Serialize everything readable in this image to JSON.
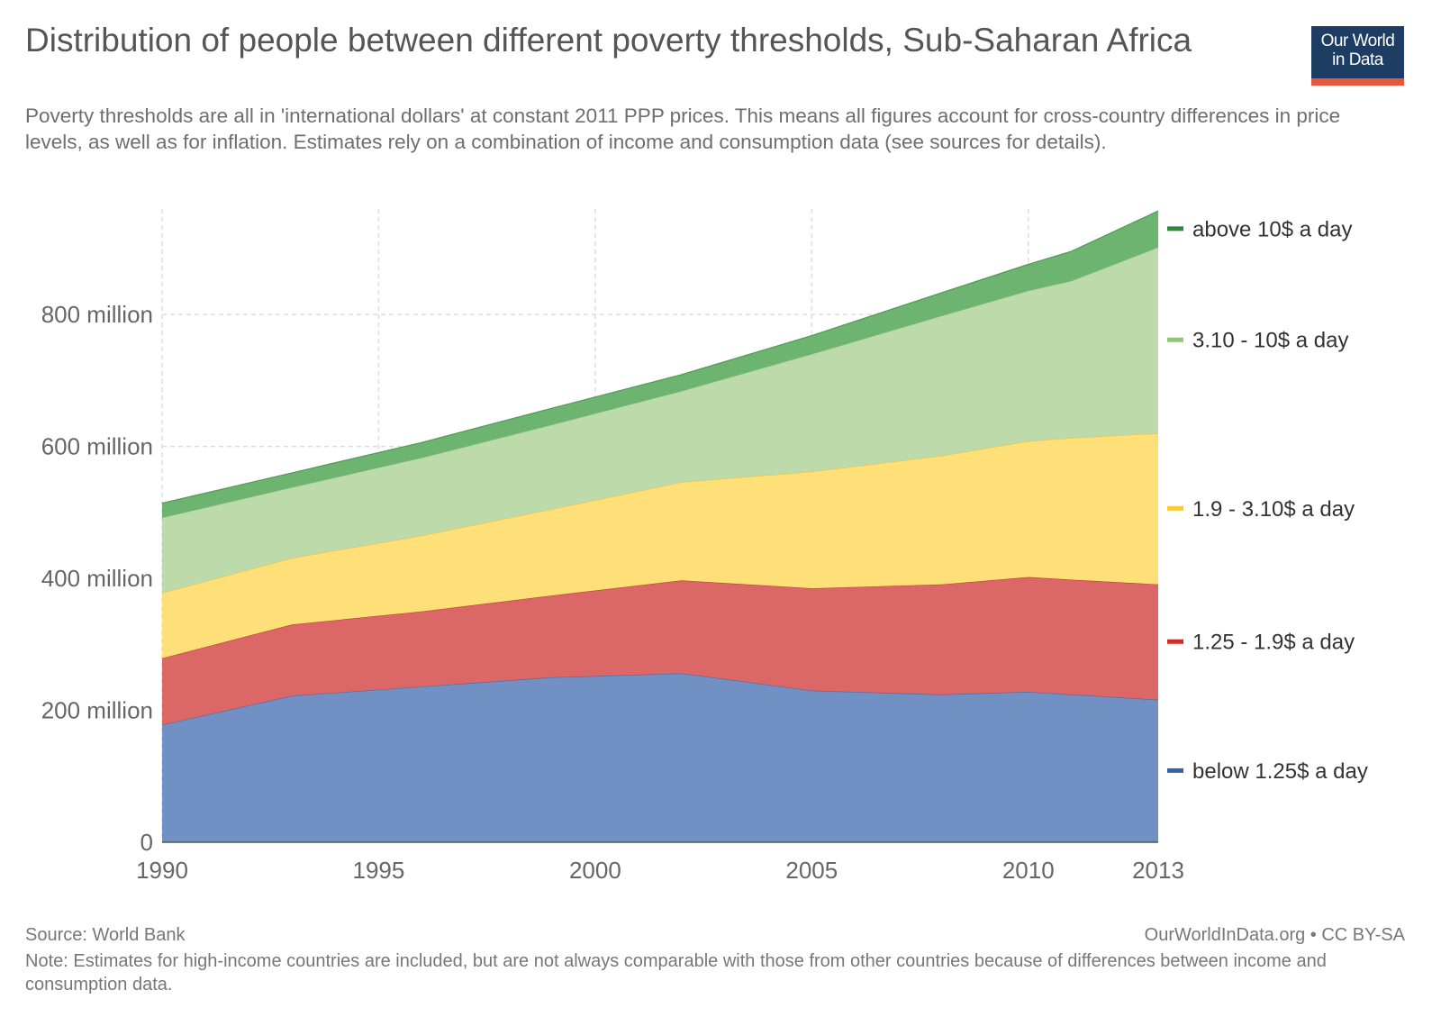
{
  "header": {
    "title": "Distribution of people between different poverty thresholds, Sub-Saharan Africa",
    "subtitle": "Poverty thresholds are all in 'international dollars' at constant 2011 PPP prices. This means all figures account for cross-country differences in price levels, as well as for inflation. Estimates rely on a combination of income and consumption data (see sources for details).",
    "logo_line1": "Our World",
    "logo_line2": "in Data"
  },
  "footer": {
    "source": "Source: World Bank",
    "credit": "OurWorldInData.org • CC BY-SA",
    "note": "Note: Estimates for high-income countries are included, but are not always comparable with those from other countries because of differences between income and consumption data."
  },
  "colors": {
    "brand_navy": "#1d3d63",
    "brand_red": "#e8563b"
  },
  "chart_data": {
    "type": "area",
    "stacked": true,
    "title": "Distribution of people between different poverty thresholds, Sub-Saharan Africa",
    "xlabel": "",
    "ylabel": "",
    "x": [
      1990,
      1993,
      1996,
      1999,
      2002,
      2005,
      2008,
      2010,
      2011,
      2013
    ],
    "xlim": [
      1990,
      2013
    ],
    "ylim": [
      0,
      960
    ],
    "unit": "million",
    "x_ticks": [
      {
        "value": 1990,
        "label": "1990"
      },
      {
        "value": 1995,
        "label": "1995"
      },
      {
        "value": 2000,
        "label": "2000"
      },
      {
        "value": 2005,
        "label": "2005"
      },
      {
        "value": 2010,
        "label": "2010"
      },
      {
        "value": 2013,
        "label": "2013"
      }
    ],
    "y_ticks": [
      {
        "value": 0,
        "label": "0"
      },
      {
        "value": 200,
        "label": "200 million"
      },
      {
        "value": 400,
        "label": "400 million"
      },
      {
        "value": 600,
        "label": "600 million"
      },
      {
        "value": 800,
        "label": "800 million"
      }
    ],
    "grid": true,
    "legend_placement": "right, aligned to stacked areas",
    "series": [
      {
        "name": "below 1.25$ a day",
        "legend_label": "below 1.25$ a day",
        "fill": "#7190c4",
        "line": "#4b6ba7",
        "key": "#3461a8",
        "values": [
          178,
          222,
          236,
          250,
          256,
          230,
          224,
          228,
          224,
          216
        ]
      },
      {
        "name": "1.25 - 1.9$ a day",
        "legend_label": "1.25 - 1.9$ a day",
        "fill": "#db6767",
        "line": "#b84040",
        "key": "#cf2b2b",
        "values": [
          101,
          108,
          114,
          124,
          141,
          155,
          167,
          174,
          174,
          175
        ]
      },
      {
        "name": "1.9 - 3.10$ a day",
        "legend_label": "1.9 - 3.10$ a day",
        "fill": "#ffdf78",
        "line": "#e9c24c",
        "key": "#fcc934",
        "values": [
          99,
          101,
          115,
          131,
          149,
          177,
          195,
          206,
          215,
          229
        ]
      },
      {
        "name": "3.10 - 10$ a day",
        "legend_label": "3.10 - 10$ a day",
        "fill": "#bddaab",
        "line": "#98c383",
        "key": "#8cc96f",
        "values": [
          114,
          107,
          118,
          128,
          138,
          178,
          212,
          228,
          238,
          282
        ]
      },
      {
        "name": "above 10$ a day",
        "legend_label": "above 10$ a day",
        "fill": "#6db470",
        "line": "#4f9a53",
        "key": "#2e8b3a",
        "values": [
          22,
          22,
          23,
          25,
          25,
          28,
          35,
          40,
          45,
          55
        ]
      }
    ]
  }
}
